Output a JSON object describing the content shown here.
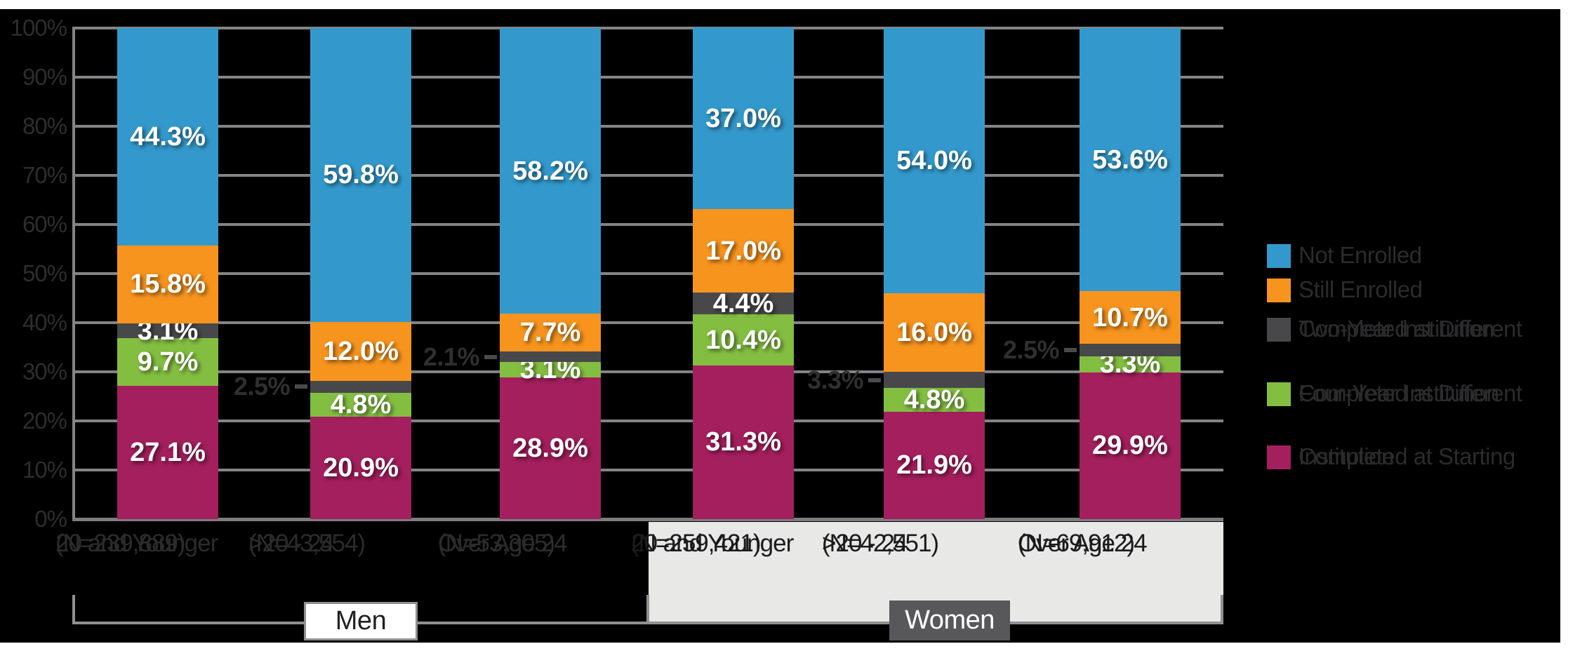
{
  "chart_data": {
    "type": "bar",
    "stacked": true,
    "orientation": "vertical",
    "unit": "%",
    "grid": true,
    "legend_position": "right",
    "ylim": [
      0,
      100
    ],
    "yticks": [
      "100%",
      "90%",
      "80%",
      "70%",
      "60%",
      "50%",
      "40%",
      "30%",
      "20%",
      "10%",
      "0%"
    ],
    "groups": [
      {
        "label": "Men",
        "categories": [
          {
            "label": "20 and Younger",
            "n": "(N=239,889)"
          },
          {
            "label": ">20 - 24",
            "n": "(N=43,554)"
          },
          {
            "label": "Over Age 24",
            "n": "(N=53,305)"
          }
        ]
      },
      {
        "label": "Women",
        "categories": [
          {
            "label": "20 and Younger",
            "n": "(N=259,421)"
          },
          {
            "label": ">20 - 24",
            "n": "(N=42,551)"
          },
          {
            "label": "Over Age 24",
            "n": "(N=69,912)"
          }
        ]
      }
    ],
    "series": [
      {
        "name": "Completed at Starting Institution",
        "color": "#A41F5D",
        "values": [
          27.1,
          20.9,
          28.9,
          31.3,
          21.9,
          29.9
        ],
        "labels": [
          "27.1%",
          "20.9%",
          "28.9%",
          "31.3%",
          "21.9%",
          "29.9%"
        ]
      },
      {
        "name": "Completed at Different Four-Year Institution",
        "color": "#83BE41",
        "values": [
          9.7,
          4.8,
          3.1,
          10.4,
          4.8,
          3.3
        ],
        "labels": [
          "9.7%",
          "4.8%",
          "3.1%",
          "10.4%",
          "4.8%",
          "3.3%"
        ]
      },
      {
        "name": "Completed at Different Two-Year Institution",
        "color": "#48484B",
        "values": [
          3.1,
          2.5,
          2.1,
          4.4,
          3.3,
          2.5
        ],
        "labels": [
          "3.1%",
          "2.5%",
          "2.1%",
          "4.4%",
          "3.3%",
          "2.5%"
        ],
        "callouts": [
          false,
          true,
          true,
          false,
          true,
          true
        ]
      },
      {
        "name": "Still Enrolled",
        "color": "#F7941E",
        "values": [
          15.8,
          12.0,
          7.7,
          17.0,
          16.0,
          10.7
        ],
        "labels": [
          "15.8%",
          "12.0%",
          "7.7%",
          "17.0%",
          "16.0%",
          "10.7%"
        ]
      },
      {
        "name": "Not Enrolled",
        "color": "#3399CC",
        "values": [
          44.3,
          59.8,
          58.2,
          37.0,
          54.0,
          53.6
        ],
        "labels": [
          "44.3%",
          "59.8%",
          "58.2%",
          "37.0%",
          "54.0%",
          "53.6%"
        ]
      }
    ],
    "legend": [
      {
        "color": "#3399CC",
        "lines": [
          "Not Enrolled"
        ]
      },
      {
        "color": "#F7941E",
        "lines": [
          "Still Enrolled"
        ]
      },
      {
        "color": "#48484B",
        "lines": [
          "Completed at Different",
          "Two-Year Institution"
        ]
      },
      {
        "color": "#83BE41",
        "lines": [
          "Completed at Different",
          "Four-Year Institution"
        ]
      },
      {
        "color": "#A41F5D",
        "lines": [
          "Completed at Starting",
          "Institution"
        ]
      }
    ]
  },
  "colors": {
    "page_bg": "#FFFFFF",
    "chart_bg": "#000000",
    "grid": "#848487",
    "bracket": "#909092",
    "axis_text": "#2D2D2F",
    "women_panel_bg": "#E8E8E7",
    "women_box_bg": "#58585A",
    "men_box_bg": "#FFFFFF"
  }
}
